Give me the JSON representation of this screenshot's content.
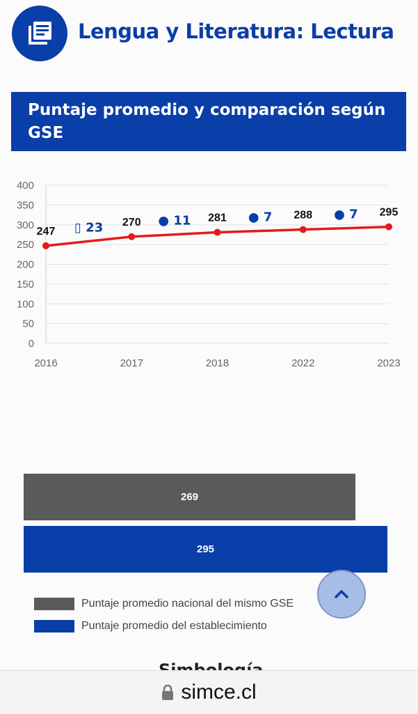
{
  "header": {
    "icon": "book-list-icon",
    "title": "Lengua y Literatura: Lectura"
  },
  "banner": {
    "title": "Puntaje promedio y comparación según GSE"
  },
  "chart_data": [
    {
      "type": "line",
      "categories": [
        "2016",
        "2017",
        "2018",
        "2022",
        "2023"
      ],
      "series": [
        {
          "values": [
            247,
            270,
            281,
            288,
            295
          ],
          "color": "#e31b1b"
        }
      ],
      "ylim": [
        0,
        400
      ],
      "yticks": [
        0,
        50,
        100,
        150,
        200,
        250,
        300,
        350,
        400
      ],
      "grid": true,
      "comparisons": [
        {
          "between": [
            "2016",
            "2017"
          ],
          "marker": "▯",
          "value": "23"
        },
        {
          "between": [
            "2017",
            "2018"
          ],
          "marker": "●",
          "value": "11"
        },
        {
          "between": [
            "2018",
            "2022"
          ],
          "marker": "●",
          "value": "7"
        },
        {
          "between": [
            "2022",
            "2023"
          ],
          "marker": "●",
          "value": "7"
        }
      ]
    },
    {
      "type": "bar",
      "orientation": "horizontal",
      "categories": [
        "Puntaje promedio nacional del mismo GSE",
        "Puntaje promedio del establecimiento"
      ],
      "values": [
        269,
        295
      ],
      "colors": [
        "#5a5a5a",
        "#0a3ea8"
      ],
      "legend": "bottom"
    }
  ],
  "bars": {
    "national_value": "269",
    "school_value": "295"
  },
  "legend": {
    "national_label": "Puntaje promedio nacional del mismo GSE",
    "school_label": "Puntaje promedio del establecimiento"
  },
  "scroll_top": {
    "icon": "chevron-up-icon"
  },
  "next_section": {
    "title": "Simbología"
  },
  "browser": {
    "lock_icon": "lock-icon",
    "url": "simce.cl"
  }
}
